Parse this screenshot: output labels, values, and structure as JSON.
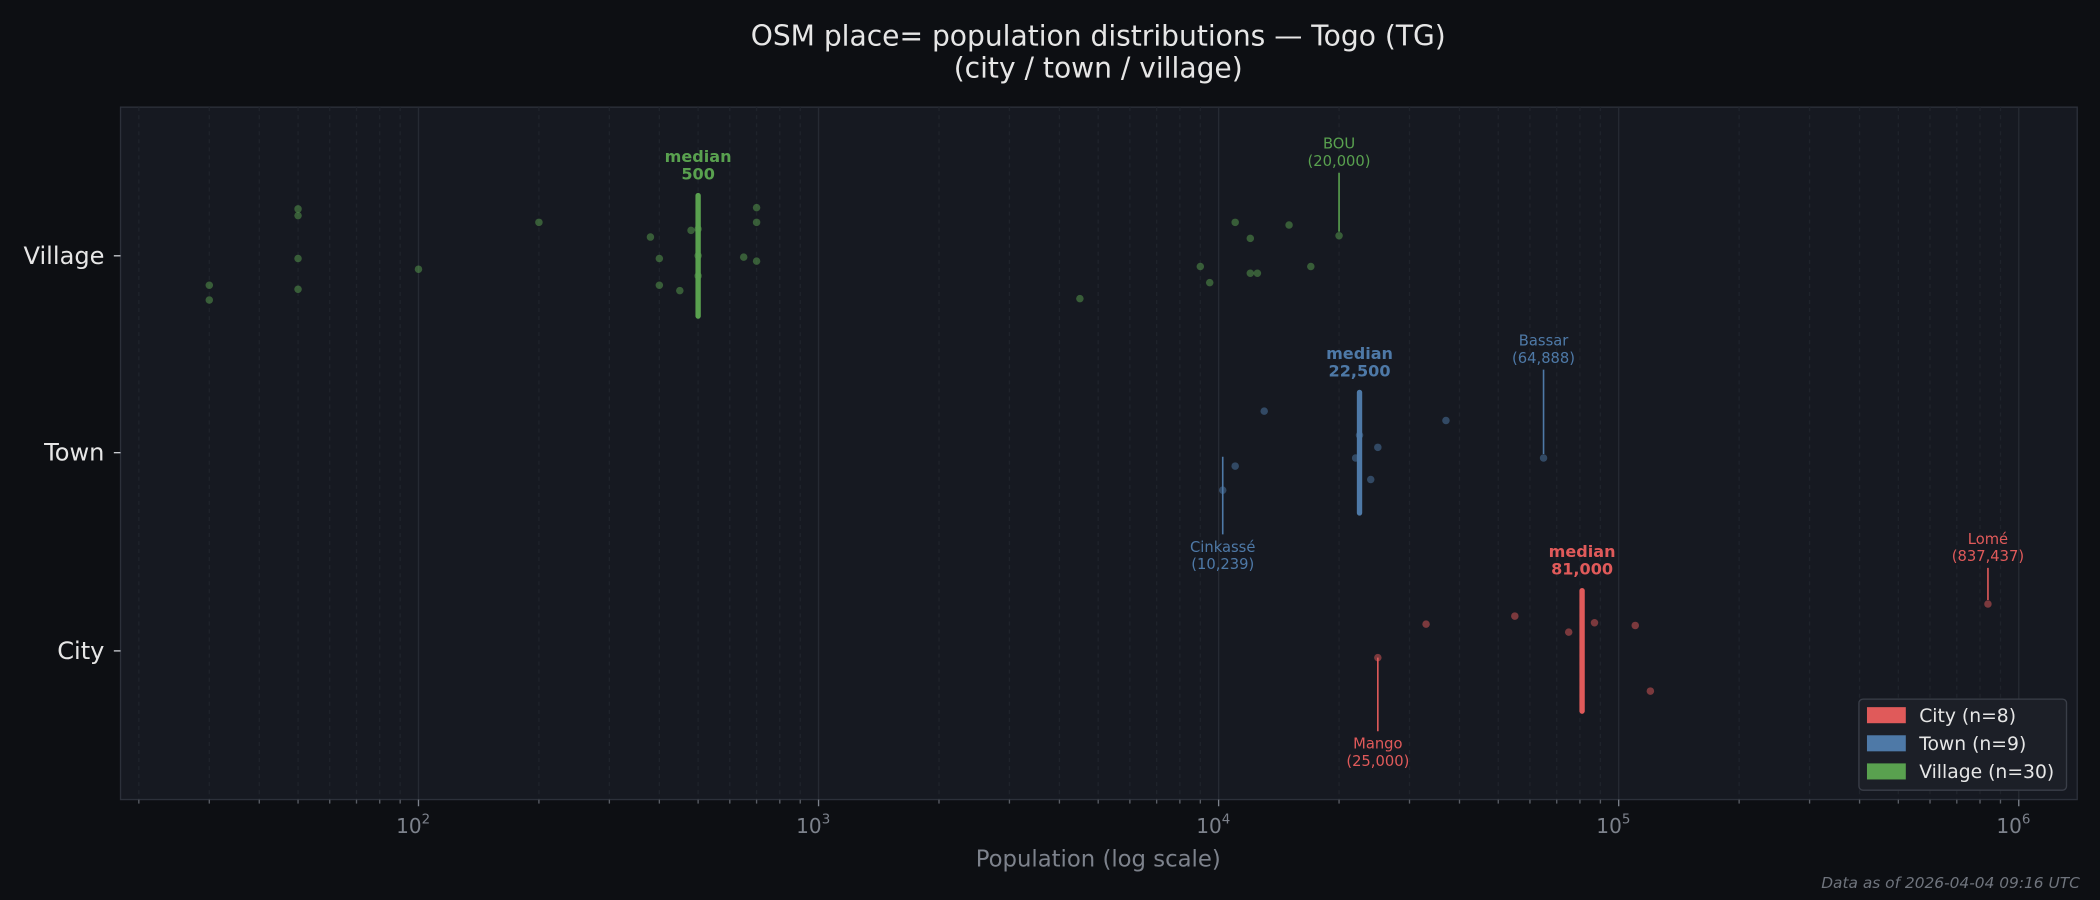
{
  "chart_data": {
    "type": "scatter",
    "title": "OSM place= population distributions — Togo (TG)",
    "subtitle": "(city / town / village)",
    "xlabel": "Population (log scale)",
    "xscale": "log",
    "xlim": [
      18,
      1400000
    ],
    "x_ticks": [
      {
        "value": 100,
        "base": "10",
        "exp": "2"
      },
      {
        "value": 1000,
        "base": "10",
        "exp": "3"
      },
      {
        "value": 10000,
        "base": "10",
        "exp": "4"
      },
      {
        "value": 100000,
        "base": "10",
        "exp": "5"
      },
      {
        "value": 1000000,
        "base": "10",
        "exp": "6"
      }
    ],
    "categories": [
      "Village",
      "Town",
      "City"
    ],
    "grid": "vertical, log minor",
    "legend_placement": "bottom-right",
    "series": [
      {
        "key": "city",
        "name": "City",
        "legend": "City  (n=8)",
        "color": "#e05a5a",
        "row": "City",
        "values": [
          25000,
          33000,
          55000,
          75000,
          87000,
          110000,
          120000,
          837437
        ],
        "median": 81000,
        "median_label": "median",
        "median_value_label": "81,000",
        "annotations": [
          {
            "name": "Mango",
            "value": 25000,
            "label": "(25,000)",
            "position": "below"
          },
          {
            "name": "Lomé",
            "value": 837437,
            "label": "(837,437)",
            "position": "above"
          }
        ]
      },
      {
        "key": "town",
        "name": "Town",
        "legend": "Town  (n=9)",
        "color": "#4e79a7",
        "row": "Town",
        "values": [
          10239,
          11000,
          13000,
          22000,
          22500,
          24000,
          25000,
          37000,
          64888
        ],
        "median": 22500,
        "median_label": "median",
        "median_value_label": "22,500",
        "annotations": [
          {
            "name": "Cinkassé",
            "value": 10239,
            "label": "(10,239)",
            "position": "below"
          },
          {
            "name": "Bassar",
            "value": 64888,
            "label": "(64,888)",
            "position": "above"
          }
        ]
      },
      {
        "key": "village",
        "name": "Village",
        "legend": "Village  (n=30)",
        "color": "#59a14f",
        "row": "Village",
        "values": [
          30,
          30,
          50,
          50,
          50,
          50,
          100,
          200,
          380,
          400,
          400,
          450,
          480,
          500,
          500,
          500,
          650,
          700,
          700,
          700,
          4500,
          9000,
          9500,
          11000,
          12000,
          12000,
          12500,
          15000,
          17000,
          20000
        ],
        "median": 500,
        "median_label": "median",
        "median_value_label": "500",
        "annotations": [
          {
            "name": "BOU",
            "value": 20000,
            "label": "(20,000)",
            "position": "above"
          }
        ]
      }
    ]
  },
  "footer": "Data as of 2026-04-04 09:16 UTC",
  "colors": {
    "background": "#0d0f13",
    "plot_background": "#161921",
    "text": "#e6e6e6",
    "muted": "#7d828c"
  }
}
